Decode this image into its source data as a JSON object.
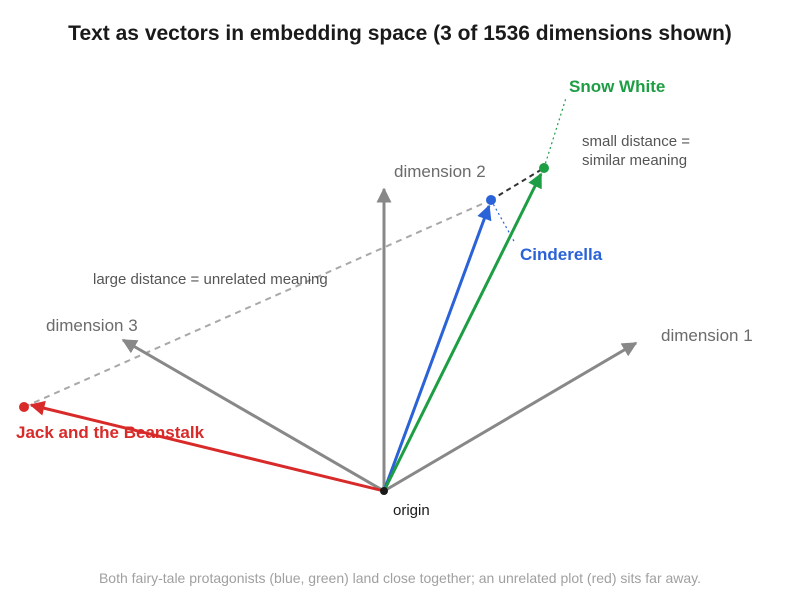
{
  "title": "Text as vectors in embedding space (3 of 1536 dimensions shown)",
  "caption": "Both fairy-tale protagonists (blue, green) land close together; an unrelated plot (red) sits far away.",
  "origin_label": "origin",
  "axes": [
    {
      "id": "dim1",
      "label": "dimension 1"
    },
    {
      "id": "dim2",
      "label": "dimension 2"
    },
    {
      "id": "dim3",
      "label": "dimension 3"
    }
  ],
  "vectors": [
    {
      "id": "snow-white",
      "label": "Snow White"
    },
    {
      "id": "cinderella",
      "label": "Cinderella"
    },
    {
      "id": "jack",
      "label": "Jack and the Beanstalk"
    }
  ],
  "annotations": {
    "small_line1": "small distance =",
    "small_line2": "similar meaning",
    "large": "large distance = unrelated meaning"
  },
  "colors": {
    "title": "#1a1a1a",
    "axis": "#888888",
    "axis_label": "#6b6b6b",
    "snow_white": "#1e9e44",
    "cinderella": "#2a62d8",
    "jack": "#d92a2a",
    "origin": "#1a1a1a",
    "small_dash": "#333333",
    "large_dash": "#a8a8a8",
    "note": "#555555",
    "caption": "#a0a0a0"
  }
}
